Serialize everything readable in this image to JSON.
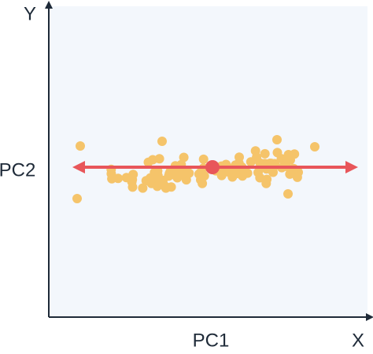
{
  "labels": {
    "y_axis": "Y",
    "x_axis": "X",
    "pc1": "PC1",
    "pc2": "PC2"
  }
}
